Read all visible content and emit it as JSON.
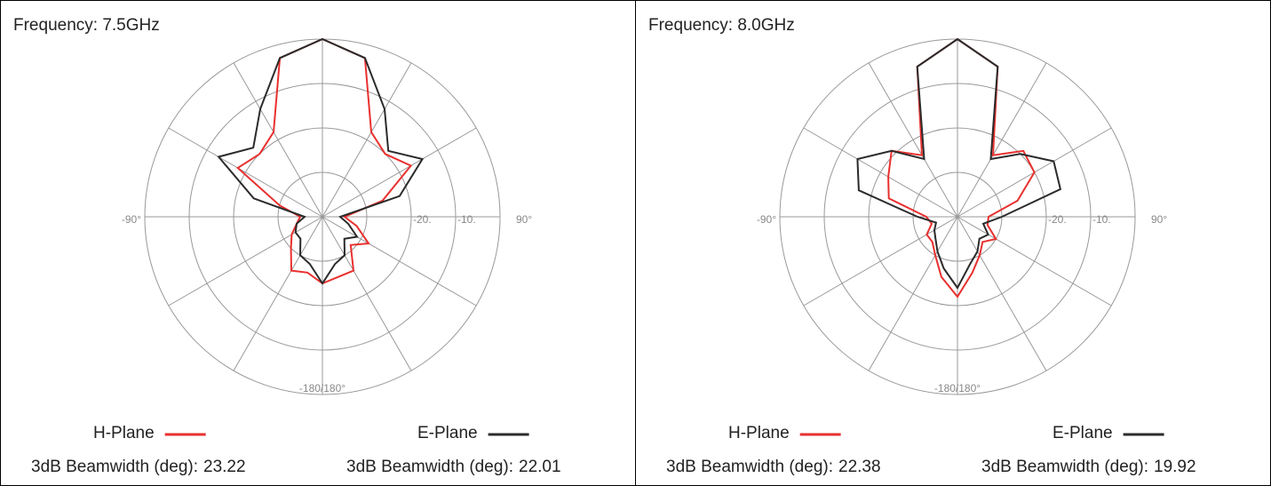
{
  "chart_data": [
    {
      "type": "polar",
      "title": "Frequency: 7.5GHz",
      "theta": [
        -180,
        -165,
        -150,
        -135,
        -120,
        -105,
        -90,
        -75,
        -60,
        -45,
        -30,
        -15,
        0,
        15,
        30,
        45,
        60,
        75,
        90,
        105,
        120,
        135,
        150,
        165
      ],
      "rlim": [
        -40,
        0
      ],
      "rgrid": [
        -30,
        -20,
        -10,
        0
      ],
      "rticks": [
        {
          "value": -20,
          "label": "-20."
        },
        {
          "value": -10,
          "label": "-10."
        }
      ],
      "thetagrid": [
        0,
        30,
        60,
        90,
        120,
        150,
        180,
        210,
        240,
        270,
        300,
        330
      ],
      "theta_labels": [
        {
          "value": -90,
          "label": "-90°"
        },
        {
          "value": 90,
          "label": "90°"
        },
        {
          "value": 180,
          "label": "-180/180°"
        }
      ],
      "beamwidth_label": "3dB Beamwidth (deg):",
      "series": [
        {
          "name": "H-Plane",
          "color": "#e8302e",
          "beamwidth": 23.22,
          "values": [
            -25,
            -27,
            -26,
            -30,
            -32,
            -34,
            -35,
            -30,
            -18,
            -20,
            -18,
            -3,
            0,
            -3,
            -18,
            -20,
            -17,
            -26,
            -35,
            -32,
            -28,
            -31,
            -26,
            -26
          ]
        },
        {
          "name": "E-Plane",
          "color": "#2b2b2b",
          "beamwidth": 22.01,
          "values": [
            -25,
            -29,
            -30,
            -33,
            -33,
            -34,
            -36,
            -24,
            -13,
            -18,
            -12,
            -3,
            0,
            -3,
            -12,
            -19,
            -14,
            -22,
            -36,
            -34,
            -31,
            -33,
            -30,
            -29
          ]
        }
      ]
    },
    {
      "type": "polar",
      "title": "Frequency: 8.0GHz",
      "theta": [
        -180,
        -165,
        -150,
        -135,
        -120,
        -105,
        -90,
        -75,
        -60,
        -45,
        -30,
        -15,
        0,
        15,
        30,
        45,
        60,
        75,
        90,
        105,
        120,
        135,
        150,
        165
      ],
      "rlim": [
        -40,
        0
      ],
      "rgrid": [
        -30,
        -20,
        -10,
        0
      ],
      "rticks": [
        {
          "value": -20,
          "label": "-20."
        },
        {
          "value": -10,
          "label": "-10."
        }
      ],
      "thetagrid": [
        0,
        30,
        60,
        90,
        120,
        150,
        180,
        210,
        240,
        270,
        300,
        330
      ],
      "theta_labels": [
        {
          "value": -90,
          "label": "-90°"
        },
        {
          "value": 90,
          "label": "90°"
        },
        {
          "value": 180,
          "label": "-180/180°"
        }
      ],
      "beamwidth_label": "3dB Beamwidth (deg):",
      "series": [
        {
          "name": "H-Plane",
          "color": "#e8302e",
          "beamwidth": 22.38,
          "values": [
            -22,
            -26,
            -30,
            -32,
            -32,
            -34,
            -33,
            -24,
            -22,
            -19,
            -24,
            -5,
            0,
            -5,
            -24,
            -19,
            -20,
            -26,
            -33,
            -33,
            -30,
            -32,
            -30,
            -27
          ]
        },
        {
          "name": "E-Plane",
          "color": "#2b2b2b",
          "beamwidth": 19.92,
          "values": [
            -24,
            -28,
            -31,
            -33,
            -34,
            -35,
            -31,
            -17,
            -14,
            -19,
            -25,
            -5,
            0,
            -5,
            -25,
            -20,
            -15,
            -16,
            -30,
            -34,
            -32,
            -33,
            -31,
            -29
          ]
        }
      ]
    }
  ]
}
